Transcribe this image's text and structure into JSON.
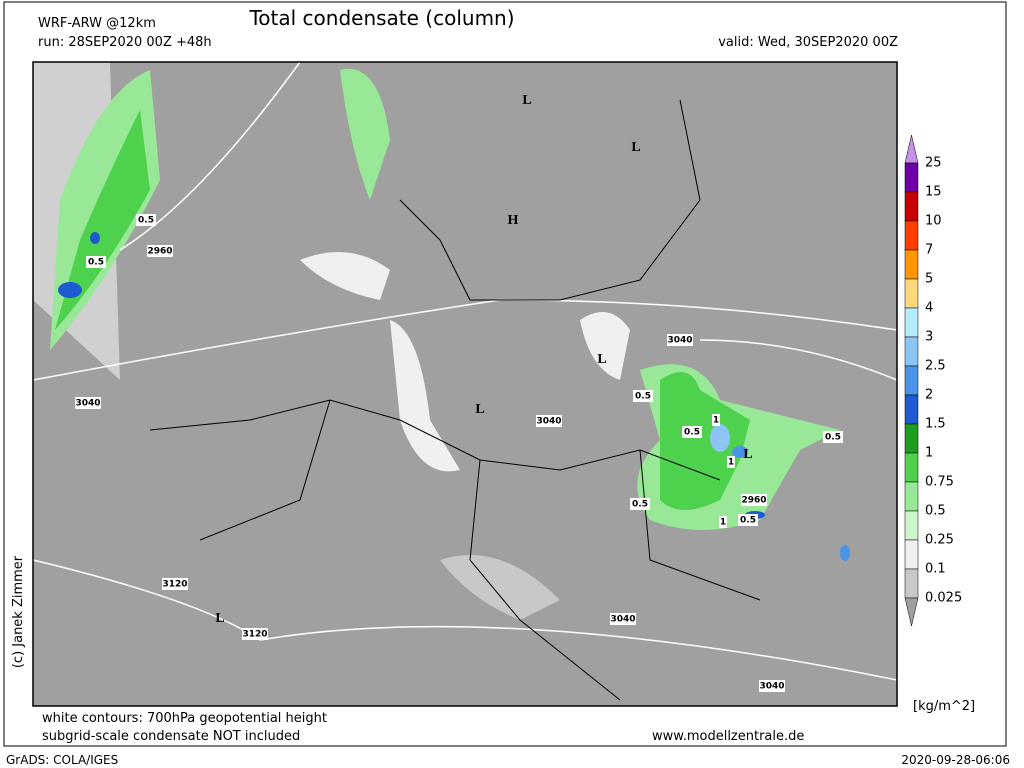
{
  "header": {
    "model": "WRF-ARW @12km",
    "run": "run: 28SEP2020 00Z +48h",
    "title": "Total condensate (column)",
    "valid": "valid: Wed, 30SEP2020 00Z"
  },
  "credit": "(c) Janek Zimmer",
  "colorbar": {
    "unit": "[kg/m^2]",
    "labels": [
      "25",
      "15",
      "10",
      "7",
      "5",
      "4",
      "3",
      "2.5",
      "2",
      "1.5",
      "1",
      "0.75",
      "0.5",
      "0.25",
      "0.1",
      "0.025"
    ],
    "colors": [
      "#c890e8",
      "#7000a8",
      "#c80000",
      "#ff3c00",
      "#ff9600",
      "#ffd878",
      "#b4ecff",
      "#8cc4f4",
      "#4a94e8",
      "#1e5ad2",
      "#1e9e1e",
      "#4ed24e",
      "#98e898",
      "#ccf5cc",
      "#f0f0f0",
      "#c8c8c8",
      "#a0a0a0"
    ]
  },
  "map_labels": [
    "L",
    "L",
    "H",
    "2960",
    "0.5",
    "0.5",
    "3040",
    "L",
    "3040",
    "L",
    "3040",
    "0.5",
    "1",
    "0.5",
    "L",
    "0.5",
    "1",
    "2960",
    "0.5",
    "1",
    "0.5",
    "3120",
    "L",
    "3120",
    "3040",
    "3040"
  ],
  "footer": {
    "contours": "white contours: 700hPa geopotential height",
    "note": "subgrid-scale condensate NOT included",
    "url": "www.modellzentrale.de",
    "software": "GrADS: COLA/IGES",
    "timestamp": "2020-09-28-06:06"
  }
}
